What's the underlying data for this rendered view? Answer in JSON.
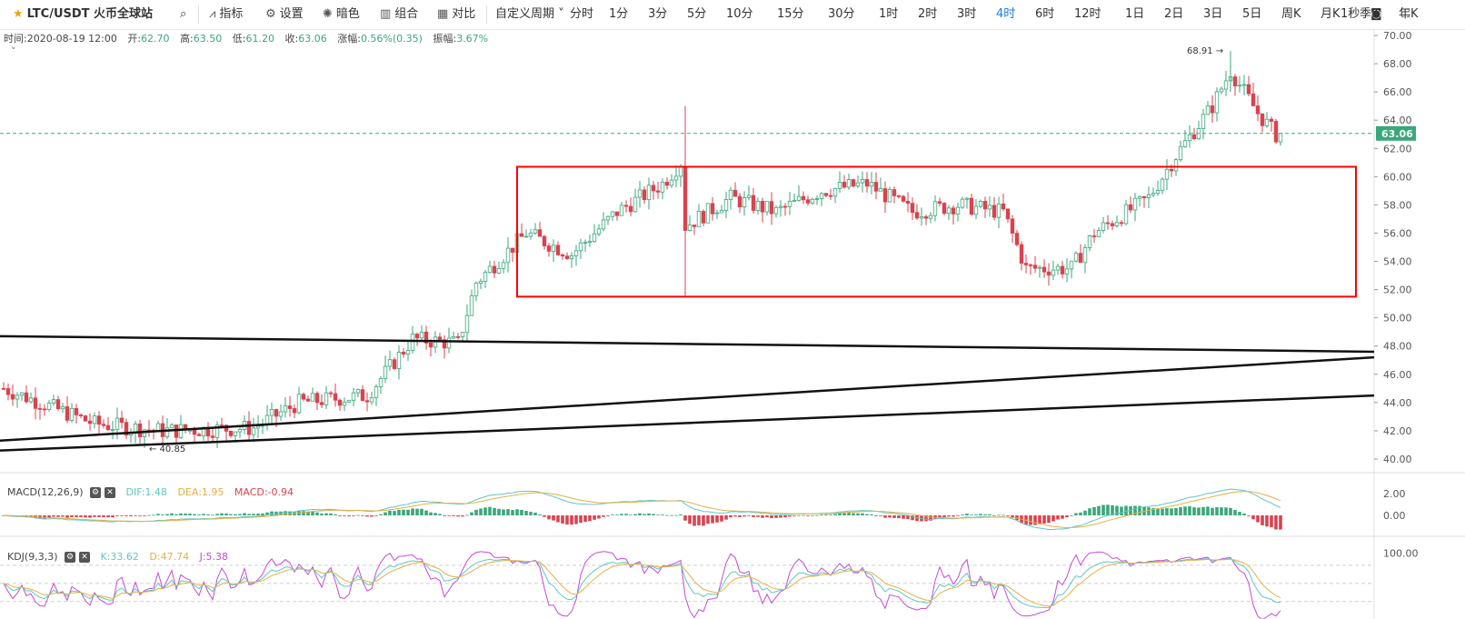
{
  "toolbar": {
    "symbol": "LTC/USDT 火币全球站",
    "indicators_label": "指标",
    "settings_label": "设置",
    "theme_label": "暗色",
    "combo_label": "组合",
    "compare_label": "对比",
    "custom_period_label": "自定义周期",
    "periods": [
      "分时",
      "1分",
      "3分",
      "5分",
      "10分",
      "15分",
      "30分",
      "1时",
      "2时",
      "3时",
      "4时",
      "6时",
      "12时",
      "1日",
      "2日",
      "3日",
      "5日",
      "周K",
      "月K",
      "季K",
      "年K"
    ],
    "active_period": "4时",
    "refresh": "1秒"
  },
  "ohlc": {
    "time_label": "时间:",
    "time": "2020-08-19 12:00",
    "open_label": "开:",
    "open": "62.70",
    "high_label": "高:",
    "high": "63.50",
    "low_label": "低:",
    "low": "61.20",
    "close_label": "收:",
    "close": "63.06",
    "change_label": "涨幅:",
    "change": "0.56%(0.35)",
    "amplitude_label": "振幅:",
    "amplitude": "3.67%"
  },
  "colors": {
    "up": "#3aa77a",
    "down": "#d9434f",
    "dif": "#5fc7c0",
    "dea": "#e3b046",
    "k": "#5fc7c0",
    "d": "#e3b046",
    "j": "#c64ad6",
    "box": "#ff0000"
  },
  "chart_data": {
    "type": "candlestick",
    "price_axis": {
      "min": 40,
      "max": 70,
      "ticks": [
        "40.00",
        "42.00",
        "44.00",
        "46.00",
        "48.00",
        "50.00",
        "52.00",
        "54.00",
        "56.00",
        "58.00",
        "60.00",
        "62.00",
        "64.00",
        "66.00",
        "68.00",
        "70.00"
      ]
    },
    "last_price": "63.06",
    "annotations": {
      "max_label": "68.91",
      "min_label": "40.85"
    },
    "anchors": [
      [
        0,
        45.0
      ],
      [
        20,
        42.5
      ],
      [
        35,
        42.0
      ],
      [
        55,
        42.2
      ],
      [
        65,
        44.0
      ],
      [
        80,
        44.5
      ],
      [
        90,
        48.5
      ],
      [
        100,
        48.2
      ],
      [
        104,
        52.5
      ],
      [
        115,
        56.0
      ],
      [
        125,
        54.5
      ],
      [
        135,
        57.5
      ],
      [
        145,
        59.5
      ],
      [
        149,
        61.0
      ],
      [
        150,
        56.5
      ],
      [
        160,
        58.5
      ],
      [
        170,
        57.5
      ],
      [
        180,
        59.0
      ],
      [
        190,
        59.5
      ],
      [
        200,
        57.5
      ],
      [
        210,
        58.0
      ],
      [
        220,
        57.5
      ],
      [
        225,
        53.5
      ],
      [
        235,
        53.5
      ],
      [
        240,
        56.0
      ],
      [
        252,
        58.5
      ],
      [
        258,
        61.5
      ],
      [
        266,
        65.0
      ],
      [
        270,
        67.5
      ],
      [
        276,
        64.5
      ],
      [
        281,
        62.6
      ]
    ],
    "macd": {
      "label": "MACD(12,26,9)",
      "dif": "DIF:1.48",
      "dea": "DEA:1.95",
      "macd": "MACD:-0.94",
      "ticks": [
        "2.00",
        "0.00"
      ]
    },
    "kdj": {
      "label": "KDJ(9,3,3)",
      "k": "K:33.62",
      "d": "D:47.74",
      "j": "J:5.38",
      "ticks": [
        "100.00"
      ]
    }
  }
}
